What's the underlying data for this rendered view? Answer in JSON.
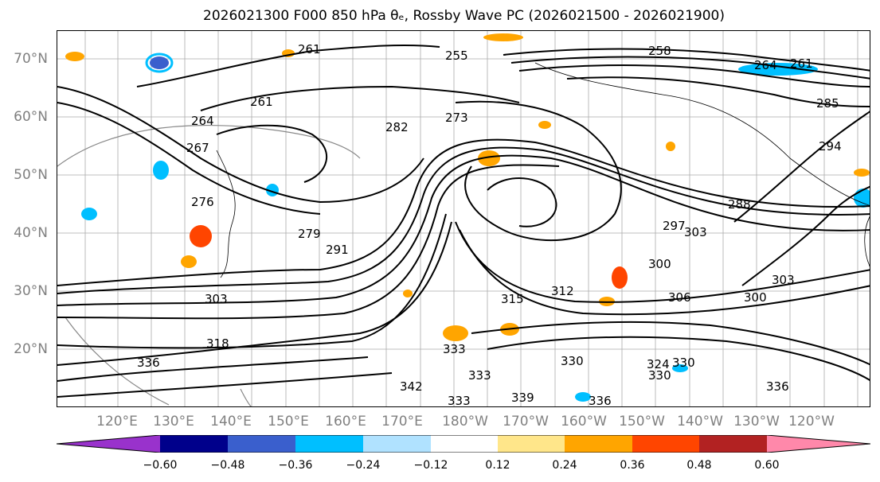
{
  "title": "2026021300 F000 850 hPa θₑ, Rossby Wave PC (2026021500 - 2026021900)",
  "lat_labels": [
    "70°N",
    "60°N",
    "50°N",
    "40°N",
    "30°N",
    "20°N"
  ],
  "lon_labels": [
    "120°E",
    "130°E",
    "140°E",
    "150°E",
    "160°E",
    "170°E",
    "180°W",
    "170°W",
    "160°W",
    "150°W",
    "140°W",
    "130°W",
    "120°W"
  ],
  "colorbar": {
    "ticks": [
      "−0.60",
      "−0.48",
      "−0.36",
      "−0.24",
      "−0.12",
      "0.12",
      "0.24",
      "0.36",
      "0.48",
      "0.60"
    ],
    "colors": [
      "#9932cc",
      "#00008b",
      "#3a5fcd",
      "#00bfff",
      "#b0e2ff",
      "#ffffff",
      "#ffe68a",
      "#ffa500",
      "#ff4500",
      "#b22222",
      "#ff88aa"
    ]
  },
  "contour_labels": [
    "261",
    "255",
    "258",
    "264",
    "261",
    "285",
    "261",
    "264",
    "267",
    "273",
    "282",
    "276",
    "279",
    "291",
    "294",
    "288",
    "297",
    "303",
    "300",
    "303",
    "306",
    "300",
    "303",
    "315",
    "312",
    "318",
    "330",
    "333",
    "336",
    "330",
    "333",
    "336",
    "339",
    "342",
    "336",
    "333",
    "330",
    "324"
  ]
}
